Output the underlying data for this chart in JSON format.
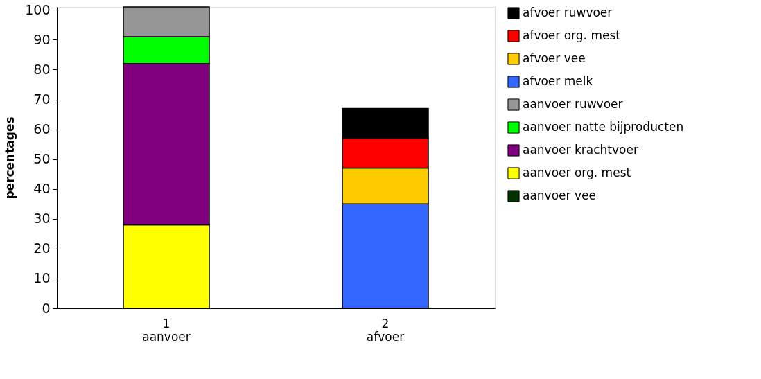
{
  "chart_data": {
    "type": "bar",
    "stacked": true,
    "ylabel": "percentages",
    "categories": [
      "1\naanvoer",
      "2\nafvoer"
    ],
    "ylim": [
      0,
      101
    ],
    "yticks": [
      0,
      10,
      20,
      30,
      40,
      50,
      60,
      70,
      80,
      90,
      100
    ],
    "grid": false,
    "legend": "right",
    "series": [
      {
        "name": "aanvoer vee",
        "color": "#003300",
        "values": [
          null,
          null
        ]
      },
      {
        "name": "aanvoer org. mest",
        "color": "#ffff00",
        "values": [
          28,
          null
        ]
      },
      {
        "name": "aanvoer krachtvoer",
        "color": "#800080",
        "values": [
          54,
          null
        ]
      },
      {
        "name": "aanvoer natte bijproducten",
        "color": "#00ff00",
        "values": [
          9,
          null
        ]
      },
      {
        "name": "aanvoer ruwvoer",
        "color": "#969696",
        "values": [
          10,
          null
        ]
      },
      {
        "name": "afvoer melk",
        "color": "#3366ff",
        "values": [
          null,
          35
        ]
      },
      {
        "name": "afvoer vee",
        "color": "#ffcc00",
        "values": [
          null,
          12
        ]
      },
      {
        "name": "afvoer org. mest",
        "color": "#ff0000",
        "values": [
          null,
          10
        ]
      },
      {
        "name": "afvoer ruwvoer",
        "color": "#000000",
        "values": [
          null,
          10
        ]
      }
    ]
  }
}
